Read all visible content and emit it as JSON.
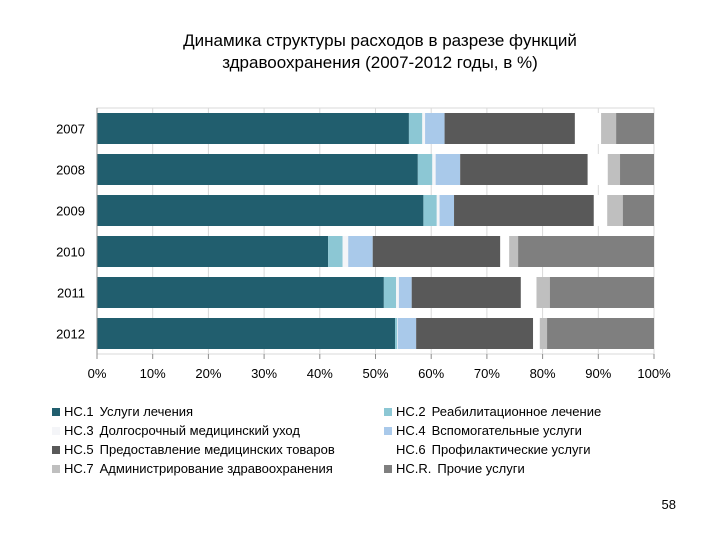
{
  "title": {
    "line1": "Динамика структуры расходов в разрезе функций",
    "line2": "здравоохранения (2007-2012 годы, в %)"
  },
  "page_number": "58",
  "chart_data": {
    "type": "bar",
    "orientation": "horizontal",
    "stacked": "percent",
    "categories": [
      "2007",
      "2008",
      "2009",
      "2010",
      "2011",
      "2012"
    ],
    "x_ticks": [
      "0%",
      "10%",
      "20%",
      "30%",
      "40%",
      "50%",
      "60%",
      "70%",
      "80%",
      "90%",
      "100%"
    ],
    "xlim": [
      0,
      100
    ],
    "gridlines": true,
    "legend_position": "bottom",
    "series": [
      {
        "code": "HC.1",
        "name": "Услуги лечения",
        "color": "#215E6E",
        "values": [
          56.0,
          57.6,
          58.6,
          41.5,
          51.5,
          53.5
        ]
      },
      {
        "code": "HC.2",
        "name": "Реабилитационное лечение",
        "color": "#8CC7D4",
        "values": [
          2.4,
          2.6,
          2.4,
          2.6,
          2.2,
          0.4
        ]
      },
      {
        "code": "HC.3",
        "name": "Долгосрочный медицинский уход",
        "color": "#F4F5F8",
        "values": [
          0.5,
          0.6,
          0.5,
          1.0,
          0.5,
          0.1
        ]
      },
      {
        "code": "HC.4",
        "name": "Вспомогательные услуги",
        "color": "#A9C9EA",
        "values": [
          3.5,
          4.4,
          2.6,
          4.4,
          2.3,
          3.3
        ]
      },
      {
        "code": "HC.5",
        "name": "Предоставление медицинских товаров",
        "color": "#595959",
        "values": [
          23.4,
          22.9,
          25.1,
          22.9,
          19.6,
          21.0
        ]
      },
      {
        "code": "HC.6",
        "name": "Профилактические услуги",
        "color": "#FFFFFF",
        "values": [
          4.7,
          3.6,
          2.4,
          1.6,
          2.8,
          1.2
        ]
      },
      {
        "code": "HC.7",
        "name": "Администрирование здравоохранения",
        "color": "#BFBFBF",
        "values": [
          2.7,
          2.2,
          2.8,
          1.6,
          2.4,
          1.3
        ]
      },
      {
        "code": "HC.R.",
        "name": "Прочие услуги",
        "color": "#7F7F7F",
        "values": [
          6.8,
          6.1,
          5.6,
          24.4,
          18.7,
          19.2
        ]
      }
    ]
  }
}
